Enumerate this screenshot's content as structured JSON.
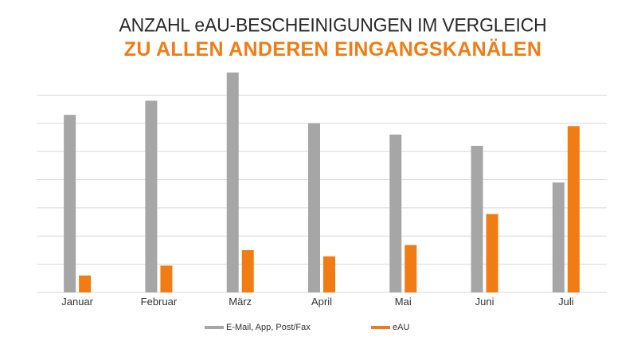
{
  "title_line1": "ANZAHL eAU-BESCHEINIGUNGEN IM VERGLEICH",
  "title_line2": "ZU ALLEN ANDEREN EINGANGSKANÄLEN",
  "colors": {
    "series1": "#a6a6a6",
    "series2": "#f07c13",
    "grid": "#d9d9d9",
    "title_accent": "#f07c13"
  },
  "chart_data": {
    "type": "bar",
    "title": "ANZAHL eAU-BESCHEINIGUNGEN IM VERGLEICH ZU ALLEN ANDEREN EINGANGSKANÄLEN",
    "categories": [
      "Januar",
      "Februar",
      "März",
      "April",
      "Mai",
      "Juni",
      "Juli"
    ],
    "series": [
      {
        "name": "E-Mail, App, Post/Fax",
        "values": [
          6.3,
          6.8,
          7.8,
          6.0,
          5.6,
          5.2,
          3.9
        ]
      },
      {
        "name": "eAU",
        "values": [
          0.6,
          0.95,
          1.5,
          1.28,
          1.68,
          2.78,
          5.9
        ]
      }
    ],
    "xlabel": "",
    "ylabel": "",
    "ylim": [
      0,
      8
    ],
    "y_tick_step": 1,
    "y_tick_labels_visible": false,
    "grid": true,
    "legend": "bottom"
  }
}
